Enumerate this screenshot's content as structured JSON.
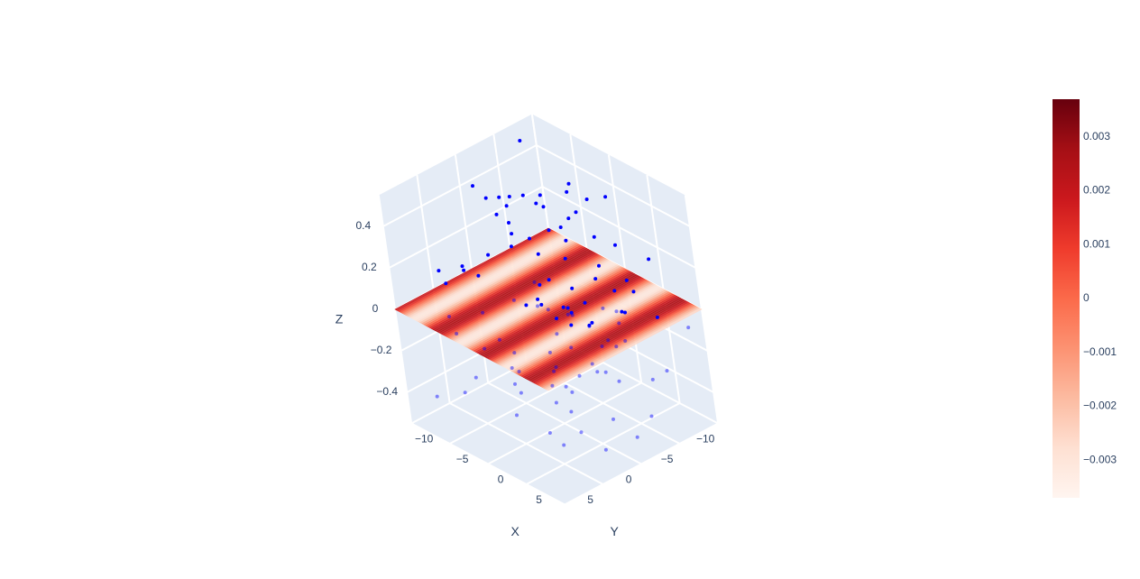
{
  "chart_data": {
    "type": "scatter",
    "kind": "3d-surface-with-scatter",
    "axes": {
      "x": {
        "label": "X",
        "range": [
          -10,
          10
        ],
        "ticks": [
          "−10",
          "−5",
          "0",
          "5"
        ]
      },
      "y": {
        "label": "Y",
        "range": [
          -10,
          10
        ],
        "ticks": [
          "−10",
          "−5",
          "0",
          "5"
        ]
      },
      "z": {
        "label": "Z",
        "range": [
          -0.55,
          0.55
        ],
        "ticks": [
          "−0.4",
          "−0.2",
          "0",
          "0.2",
          "0.4"
        ]
      }
    },
    "surface": {
      "description": "plane z ≈ 0.002·sin(x) with stripes along y",
      "amplitude": 0.0037,
      "colorscale": "Reds",
      "cmin": -0.0037,
      "cmax": 0.0037
    },
    "colorbar": {
      "ticks": [
        "0.003",
        "0.002",
        "0.001",
        "0",
        "−0.001",
        "−0.002",
        "−0.003"
      ],
      "tick_values": [
        0.003,
        0.002,
        0.001,
        0,
        -0.001,
        -0.002,
        -0.003
      ]
    },
    "scatter": {
      "color": "#0000ff",
      "count": 110
    },
    "grid": true
  }
}
